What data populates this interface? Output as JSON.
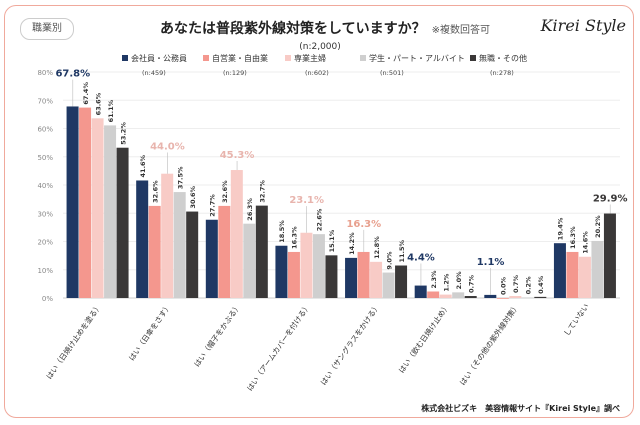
{
  "badge": "職業別",
  "title": "あなたは普段紫外線対策をしていますか？",
  "note": "※複数回答可",
  "n_total": "(n:2,000)",
  "logo": "Kirei Style",
  "footer": "株式会社ビズキ　美容情報サイト『Kirei Style』調べ",
  "chart_data": {
    "type": "bar",
    "ylim": [
      0,
      80
    ],
    "yticks": [
      "0%",
      "10%",
      "20%",
      "30%",
      "40%",
      "50%",
      "60%",
      "70%",
      "80%"
    ],
    "grid": true,
    "legend": "top",
    "categories": [
      "はい（日焼け止めを塗る）",
      "はい（日傘をさす）",
      "はい（帽子をかぶる）",
      "はい（アームカバーを付ける）",
      "はい（サングラスをかける）",
      "はい（飲む日焼け止め）",
      "はい（その他の紫外線対策）",
      "していない"
    ],
    "series": [
      {
        "name": "会社員・公務員",
        "n": "(n:459)",
        "color": "#1f3864",
        "values": [
          67.8,
          41.6,
          27.7,
          18.5,
          14.2,
          4.4,
          1.1,
          19.4
        ]
      },
      {
        "name": "自営業・自由業",
        "n": "(n:129)",
        "color": "#f4978e",
        "values": [
          67.4,
          32.6,
          32.6,
          16.3,
          16.3,
          2.3,
          0.0,
          16.3
        ]
      },
      {
        "name": "専業主婦",
        "n": "(n:602)",
        "color": "#f8cbc6",
        "values": [
          63.6,
          44.0,
          45.3,
          23.1,
          12.8,
          1.2,
          0.7,
          14.6
        ]
      },
      {
        "name": "学生・パート・アルバイト",
        "n": "(n:501)",
        "color": "#cfcfcf",
        "values": [
          61.1,
          37.5,
          26.3,
          22.6,
          9.0,
          2.0,
          0.2,
          20.2
        ]
      },
      {
        "name": "無職・その他",
        "n": "(n:278)",
        "color": "#3a3838",
        "values": [
          53.2,
          30.6,
          32.7,
          15.1,
          11.5,
          0.7,
          0.4,
          29.9
        ]
      }
    ],
    "highlight_colors": [
      "#1f3864",
      "#e8a08e",
      "#e8b4ad",
      "#999999",
      "#3a3838"
    ]
  }
}
